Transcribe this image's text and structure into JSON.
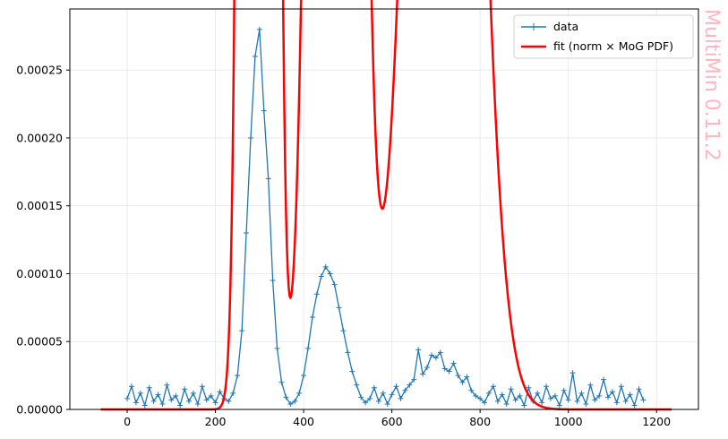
{
  "chart_data": {
    "type": "line",
    "title": "",
    "xlabel": "",
    "ylabel": "",
    "xlim": [
      -130,
      1295
    ],
    "ylim": [
      0,
      0.000295
    ],
    "xticks": [
      0,
      200,
      400,
      600,
      800,
      1000,
      1200
    ],
    "xtick_labels": [
      "0",
      "200",
      "400",
      "600",
      "800",
      "1000",
      "1200"
    ],
    "yticks": [
      0,
      5e-05,
      0.0001,
      0.00015,
      0.0002,
      0.00025
    ],
    "ytick_labels": [
      "0.00000",
      "0.00005",
      "0.00010",
      "0.00015",
      "0.00020",
      "0.00025"
    ],
    "grid": true,
    "legend_position": "top-right",
    "colors": {
      "data": "#1f77b4",
      "fit": "#ff0000",
      "watermark": "#ffb6c1"
    },
    "series": [
      {
        "name": "data",
        "style": "line with + markers",
        "x": [
          0,
          10,
          20,
          30,
          40,
          50,
          60,
          70,
          80,
          90,
          100,
          110,
          120,
          130,
          140,
          150,
          160,
          170,
          180,
          190,
          200,
          210,
          220,
          230,
          240,
          250,
          260,
          270,
          280,
          290,
          300,
          310,
          320,
          330,
          340,
          350,
          360,
          370,
          380,
          390,
          400,
          410,
          420,
          430,
          440,
          450,
          460,
          470,
          480,
          490,
          500,
          510,
          520,
          530,
          540,
          550,
          560,
          570,
          580,
          590,
          600,
          610,
          620,
          630,
          640,
          650,
          660,
          670,
          680,
          690,
          700,
          710,
          720,
          730,
          740,
          750,
          760,
          770,
          780,
          790,
          800,
          810,
          820,
          830,
          840,
          850,
          860,
          870,
          880,
          890,
          900,
          910,
          920,
          930,
          940,
          950,
          960,
          970,
          980,
          990,
          1000,
          1010,
          1020,
          1030,
          1040,
          1050,
          1060,
          1070,
          1080,
          1090,
          1100,
          1110,
          1120,
          1130,
          1140,
          1150,
          1160,
          1170
        ],
        "y": [
          8e-06,
          1.7e-05,
          5e-06,
          1.2e-05,
          3e-06,
          1.6e-05,
          6e-06,
          1.1e-05,
          4e-06,
          1.8e-05,
          7e-06,
          1e-05,
          3e-06,
          1.5e-05,
          6e-06,
          1.2e-05,
          4e-06,
          1.7e-05,
          7e-06,
          1e-05,
          5e-06,
          1.3e-05,
          8e-06,
          6e-06,
          1.2e-05,
          2.5e-05,
          5.8e-05,
          0.00013,
          0.0002,
          0.00026,
          0.00028,
          0.00022,
          0.00017,
          9.5e-05,
          4.5e-05,
          2e-05,
          9e-06,
          4e-06,
          6e-06,
          1.2e-05,
          2.5e-05,
          4.5e-05,
          6.8e-05,
          8.5e-05,
          9.8e-05,
          0.000105,
          0.0001,
          9.2e-05,
          7.5e-05,
          5.8e-05,
          4.2e-05,
          2.8e-05,
          1.8e-05,
          9e-06,
          5e-06,
          8e-06,
          1.6e-05,
          6e-06,
          1.2e-05,
          4e-06,
          1.1e-05,
          1.7e-05,
          8e-06,
          1.4e-05,
          1.8e-05,
          2.2e-05,
          4.4e-05,
          2.6e-05,
          3.1e-05,
          4e-05,
          3.8e-05,
          4.2e-05,
          3e-05,
          2.8e-05,
          3.4e-05,
          2.5e-05,
          2e-05,
          2.4e-05,
          1.4e-05,
          1e-05,
          8e-06,
          5e-06,
          1.2e-05,
          1.7e-05,
          6e-06,
          1.1e-05,
          4e-06,
          1.5e-05,
          7e-06,
          1e-05,
          3e-06,
          1.6e-05,
          6e-06,
          1.2e-05,
          5e-06,
          1.7e-05,
          8e-06,
          1e-05,
          3e-06,
          1.4e-05,
          7e-06,
          2.7e-05,
          6e-06,
          1.2e-05,
          4e-06,
          1.8e-05,
          7e-06,
          1e-05,
          2.2e-05,
          9e-06,
          1.3e-05,
          5e-06,
          1.7e-05,
          6e-06,
          1.1e-05,
          3e-06,
          1.5e-05,
          7e-06
        ]
      },
      {
        "name": "fit (norm × MoG PDF)",
        "style": "solid line",
        "components": [
          {
            "weight": 0.5,
            "mean": 298,
            "sd": 21
          },
          {
            "weight": 0.3,
            "mean": 473,
            "sd": 36
          },
          {
            "weight": 0.2,
            "mean": 718,
            "sd": 62
          }
        ],
        "x_range": [
          -60,
          1235
        ]
      }
    ],
    "legend": [
      "data",
      "fit (norm × MoG PDF)"
    ]
  },
  "watermark": "MultiMin 0.11.2"
}
